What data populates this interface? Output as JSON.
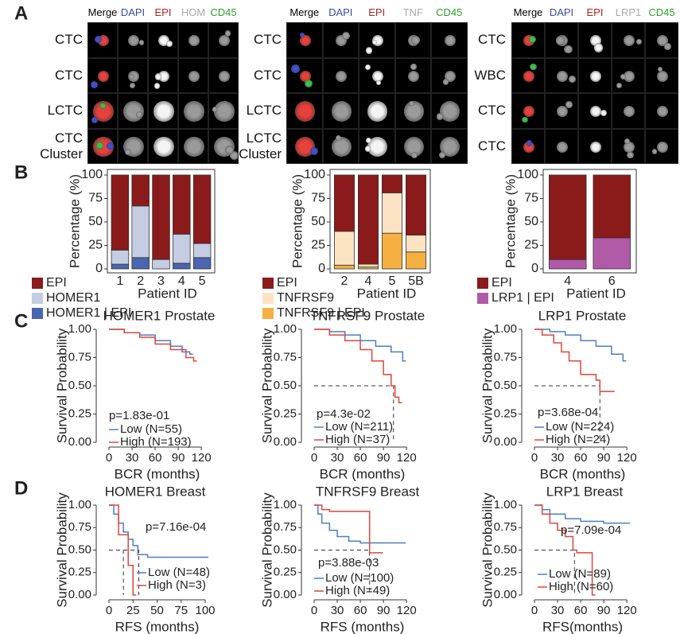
{
  "panel_labels": [
    "A",
    "B",
    "C",
    "D"
  ],
  "panel_a": [
    {
      "headers": [
        "Merge",
        "DAPI",
        "EPI",
        "HOM",
        "CD45"
      ],
      "rows": [
        "CTC",
        "CTC",
        "LCTC",
        "CTC Cluster"
      ]
    },
    {
      "headers": [
        "Merge",
        "DAPI",
        "EPI",
        "TNF",
        "CD45"
      ],
      "rows": [
        "CTC",
        "CTC",
        "LCTC",
        "LCTC Cluster"
      ]
    },
    {
      "headers": [
        "Merge",
        "DAPI",
        "EPI",
        "LRP1",
        "CD45"
      ],
      "rows": [
        "CTC",
        "WBC",
        "CTC",
        "CTC"
      ]
    }
  ],
  "chart_data": [
    {
      "type": "stacked_bar",
      "ylabel": "Percentage (%)",
      "xlabel": "Patient ID",
      "categories": [
        "1",
        "2",
        "3",
        "4",
        "5"
      ],
      "series": [
        {
          "name": "EPI",
          "color": "#8b1a1a",
          "values": [
            80,
            33,
            90,
            63,
            73
          ]
        },
        {
          "name": "HOMER1",
          "color": "#c5cde3",
          "values": [
            15,
            55,
            10,
            31,
            15
          ]
        },
        {
          "name": "HOMER1 | EPI",
          "color": "#4a66b0",
          "values": [
            5,
            12,
            0,
            6,
            12
          ]
        }
      ],
      "ylim": [
        0,
        100
      ],
      "yticks": [
        0,
        25,
        50,
        75,
        100
      ]
    },
    {
      "type": "stacked_bar",
      "ylabel": "Percentage (%)",
      "xlabel": "Patient ID",
      "categories": [
        "2",
        "4",
        "5",
        "5B"
      ],
      "series": [
        {
          "name": "EPI",
          "color": "#8b1a1a",
          "values": [
            60,
            95,
            19,
            64
          ]
        },
        {
          "name": "TNFRSF9",
          "color": "#fbe3c4",
          "values": [
            36,
            3,
            43,
            18
          ]
        },
        {
          "name": "TNFRSF9 | EPI",
          "color": "#f5b041",
          "values": [
            4,
            2,
            38,
            18
          ]
        }
      ],
      "ylim": [
        0,
        100
      ],
      "yticks": [
        0,
        25,
        50,
        75,
        100
      ]
    },
    {
      "type": "stacked_bar",
      "ylabel": "Percentage (%)",
      "xlabel": "Patient ID",
      "categories": [
        "4",
        "6"
      ],
      "series": [
        {
          "name": "EPI",
          "color": "#8b1a1a",
          "values": [
            90,
            67
          ]
        },
        {
          "name": "LRP1 | EPI",
          "color": "#b05aa8",
          "values": [
            10,
            33
          ]
        }
      ],
      "ylim": [
        0,
        100
      ],
      "yticks": [
        0,
        25,
        50,
        75,
        100
      ]
    },
    {
      "type": "km",
      "title": "HOMER1 Prostate",
      "ylabel": "Survival Probability",
      "xlabel": "BCR (months)",
      "pvalue": "p=1.83e-01",
      "series": [
        {
          "name": "Low (N=55)",
          "color": "#4a7fc1",
          "x": [
            0,
            20,
            40,
            60,
            80,
            95,
            105
          ],
          "values": [
            1,
            0.97,
            0.95,
            0.9,
            0.85,
            0.8,
            0.78
          ]
        },
        {
          "name": "High (N=193)",
          "color": "#e0453a",
          "x": [
            0,
            20,
            40,
            60,
            80,
            100,
            110
          ],
          "values": [
            1,
            0.97,
            0.93,
            0.87,
            0.82,
            0.75,
            0.72
          ]
        }
      ],
      "xlim": [
        0,
        125
      ],
      "xticks": [
        0,
        30,
        60,
        90,
        120
      ],
      "ylim": [
        0,
        1
      ],
      "yticks": [
        {
          "value": 0,
          "label": "0.00"
        },
        0.25,
        {
          "value": 0.5,
          "label": "0.50"
        },
        0.75,
        {
          "value": 1,
          "label": "1.00"
        }
      ]
    },
    {
      "type": "km",
      "title": "TNFRSF9 Prostate",
      "ylabel": "Survival Probability",
      "xlabel": "BCR (months)",
      "pvalue": "p=4.3e-02",
      "series": [
        {
          "name": "Low (N=211)",
          "color": "#4a7fc1",
          "x": [
            0,
            20,
            40,
            60,
            80,
            100,
            115
          ],
          "values": [
            1,
            0.98,
            0.95,
            0.9,
            0.85,
            0.8,
            0.72
          ]
        },
        {
          "name": "High (N=37)",
          "color": "#e0453a",
          "x": [
            0,
            20,
            40,
            60,
            75,
            90,
            100,
            105,
            110
          ],
          "values": [
            1,
            0.95,
            0.9,
            0.82,
            0.72,
            0.6,
            0.5,
            0.4,
            0.35
          ],
          "median": 103
        }
      ],
      "xlim": [
        0,
        125
      ],
      "xticks": [
        0,
        30,
        60,
        90,
        120
      ],
      "ylim": [
        0,
        1
      ],
      "yticks": [
        {
          "value": 0,
          "label": "0.00"
        },
        0.25,
        {
          "value": 0.5,
          "label": "0.50"
        },
        0.75,
        {
          "value": 1,
          "label": "1.00"
        }
      ]
    },
    {
      "type": "km",
      "title": "LRP1 Prostate",
      "ylabel": "Survival Probability",
      "xlabel": "BCR (months)",
      "pvalue": "p=3.68e-04",
      "series": [
        {
          "name": "Low (N=224)",
          "color": "#4a7fc1",
          "x": [
            0,
            20,
            40,
            60,
            80,
            100,
            115
          ],
          "values": [
            1,
            0.98,
            0.95,
            0.9,
            0.85,
            0.78,
            0.72
          ]
        },
        {
          "name": "High (N=24)",
          "color": "#e0453a",
          "x": [
            0,
            10,
            25,
            35,
            45,
            60,
            80,
            85,
            100
          ],
          "values": [
            1,
            0.95,
            0.88,
            0.8,
            0.72,
            0.6,
            0.55,
            0.45,
            0.45
          ],
          "median": 85
        }
      ],
      "xlim": [
        0,
        125
      ],
      "xticks": [
        0,
        30,
        60,
        90,
        120
      ],
      "ylim": [
        0,
        1
      ],
      "yticks": [
        {
          "value": 0,
          "label": "0.00"
        },
        0.25,
        {
          "value": 0.5,
          "label": "0.50"
        },
        0.75,
        {
          "value": 1,
          "label": "1.00"
        }
      ]
    },
    {
      "type": "km",
      "title": "HOMER1 Breast",
      "ylabel": "Survival Probability",
      "xlabel": "RFS (months)",
      "pvalue": "p=7.16e-04",
      "series": [
        {
          "name": "Low (N=48)",
          "color": "#4a7fc1",
          "x": [
            0,
            5,
            10,
            15,
            20,
            25,
            30,
            40,
            100
          ],
          "values": [
            1,
            0.9,
            0.8,
            0.7,
            0.62,
            0.55,
            0.45,
            0.42,
            0.42
          ],
          "median": 31
        },
        {
          "name": "High (N=3)",
          "color": "#e0453a",
          "x": [
            0,
            10,
            20,
            25
          ],
          "values": [
            1,
            0.67,
            0.33,
            0
          ],
          "median": 15
        }
      ],
      "xlim": [
        0,
        100
      ],
      "xticks": [
        0,
        25,
        50,
        75,
        100
      ],
      "ylim": [
        0,
        1
      ],
      "yticks": [
        {
          "value": 0,
          "label": "0.00"
        },
        0.25,
        {
          "value": 0.5,
          "label": "0.50"
        },
        0.75,
        {
          "value": 1,
          "label": "1.00"
        }
      ]
    },
    {
      "type": "km",
      "title": "TNFRSF9 Breast",
      "ylabel": "Survival Probability",
      "xlabel": "RFS (months)",
      "pvalue": "p=3.88e-03",
      "series": [
        {
          "name": "Low (N=100)",
          "color": "#4a7fc1",
          "x": [
            0,
            5,
            10,
            20,
            30,
            45,
            60,
            80,
            115
          ],
          "values": [
            1,
            0.9,
            0.8,
            0.72,
            0.65,
            0.6,
            0.58,
            0.58,
            0.58
          ]
        },
        {
          "name": "High (N=49)",
          "color": "#e0453a",
          "x": [
            0,
            10,
            20,
            60,
            72,
            85
          ],
          "values": [
            1,
            0.95,
            0.93,
            0.93,
            0.47,
            0.47
          ],
          "median": 72
        }
      ],
      "xlim": [
        0,
        125
      ],
      "xticks": [
        0,
        30,
        60,
        90,
        120
      ],
      "ylim": [
        0,
        1
      ],
      "yticks": [
        {
          "value": 0,
          "label": "0.00"
        },
        0.25,
        {
          "value": 0.5,
          "label": "0.50"
        },
        0.75,
        {
          "value": 1,
          "label": "1.00"
        }
      ]
    },
    {
      "type": "km",
      "title": "LRP1 Breast",
      "ylabel": "Survival Probability",
      "xlabel": "RFS(months)",
      "pvalue": "p=7.09e-04",
      "series": [
        {
          "name": "Low (N=89)",
          "color": "#4a7fc1",
          "x": [
            0,
            10,
            20,
            40,
            60,
            90,
            120
          ],
          "values": [
            1,
            0.95,
            0.9,
            0.85,
            0.82,
            0.8,
            0.8
          ]
        },
        {
          "name": "High (N=60)",
          "color": "#e0453a",
          "x": [
            0,
            10,
            20,
            30,
            40,
            50,
            55,
            70,
            75
          ],
          "values": [
            1,
            0.9,
            0.8,
            0.72,
            0.65,
            0.5,
            0.47,
            0.47,
            0
          ],
          "median": 52
        }
      ],
      "xlim": [
        0,
        125
      ],
      "xticks": [
        0,
        30,
        60,
        90,
        120
      ],
      "ylim": [
        0,
        1
      ],
      "yticks": [
        {
          "value": 0,
          "label": "0.00"
        },
        0.25,
        {
          "value": 0.5,
          "label": "0.50"
        },
        0.75,
        {
          "value": 1,
          "label": "1.00"
        }
      ]
    }
  ]
}
